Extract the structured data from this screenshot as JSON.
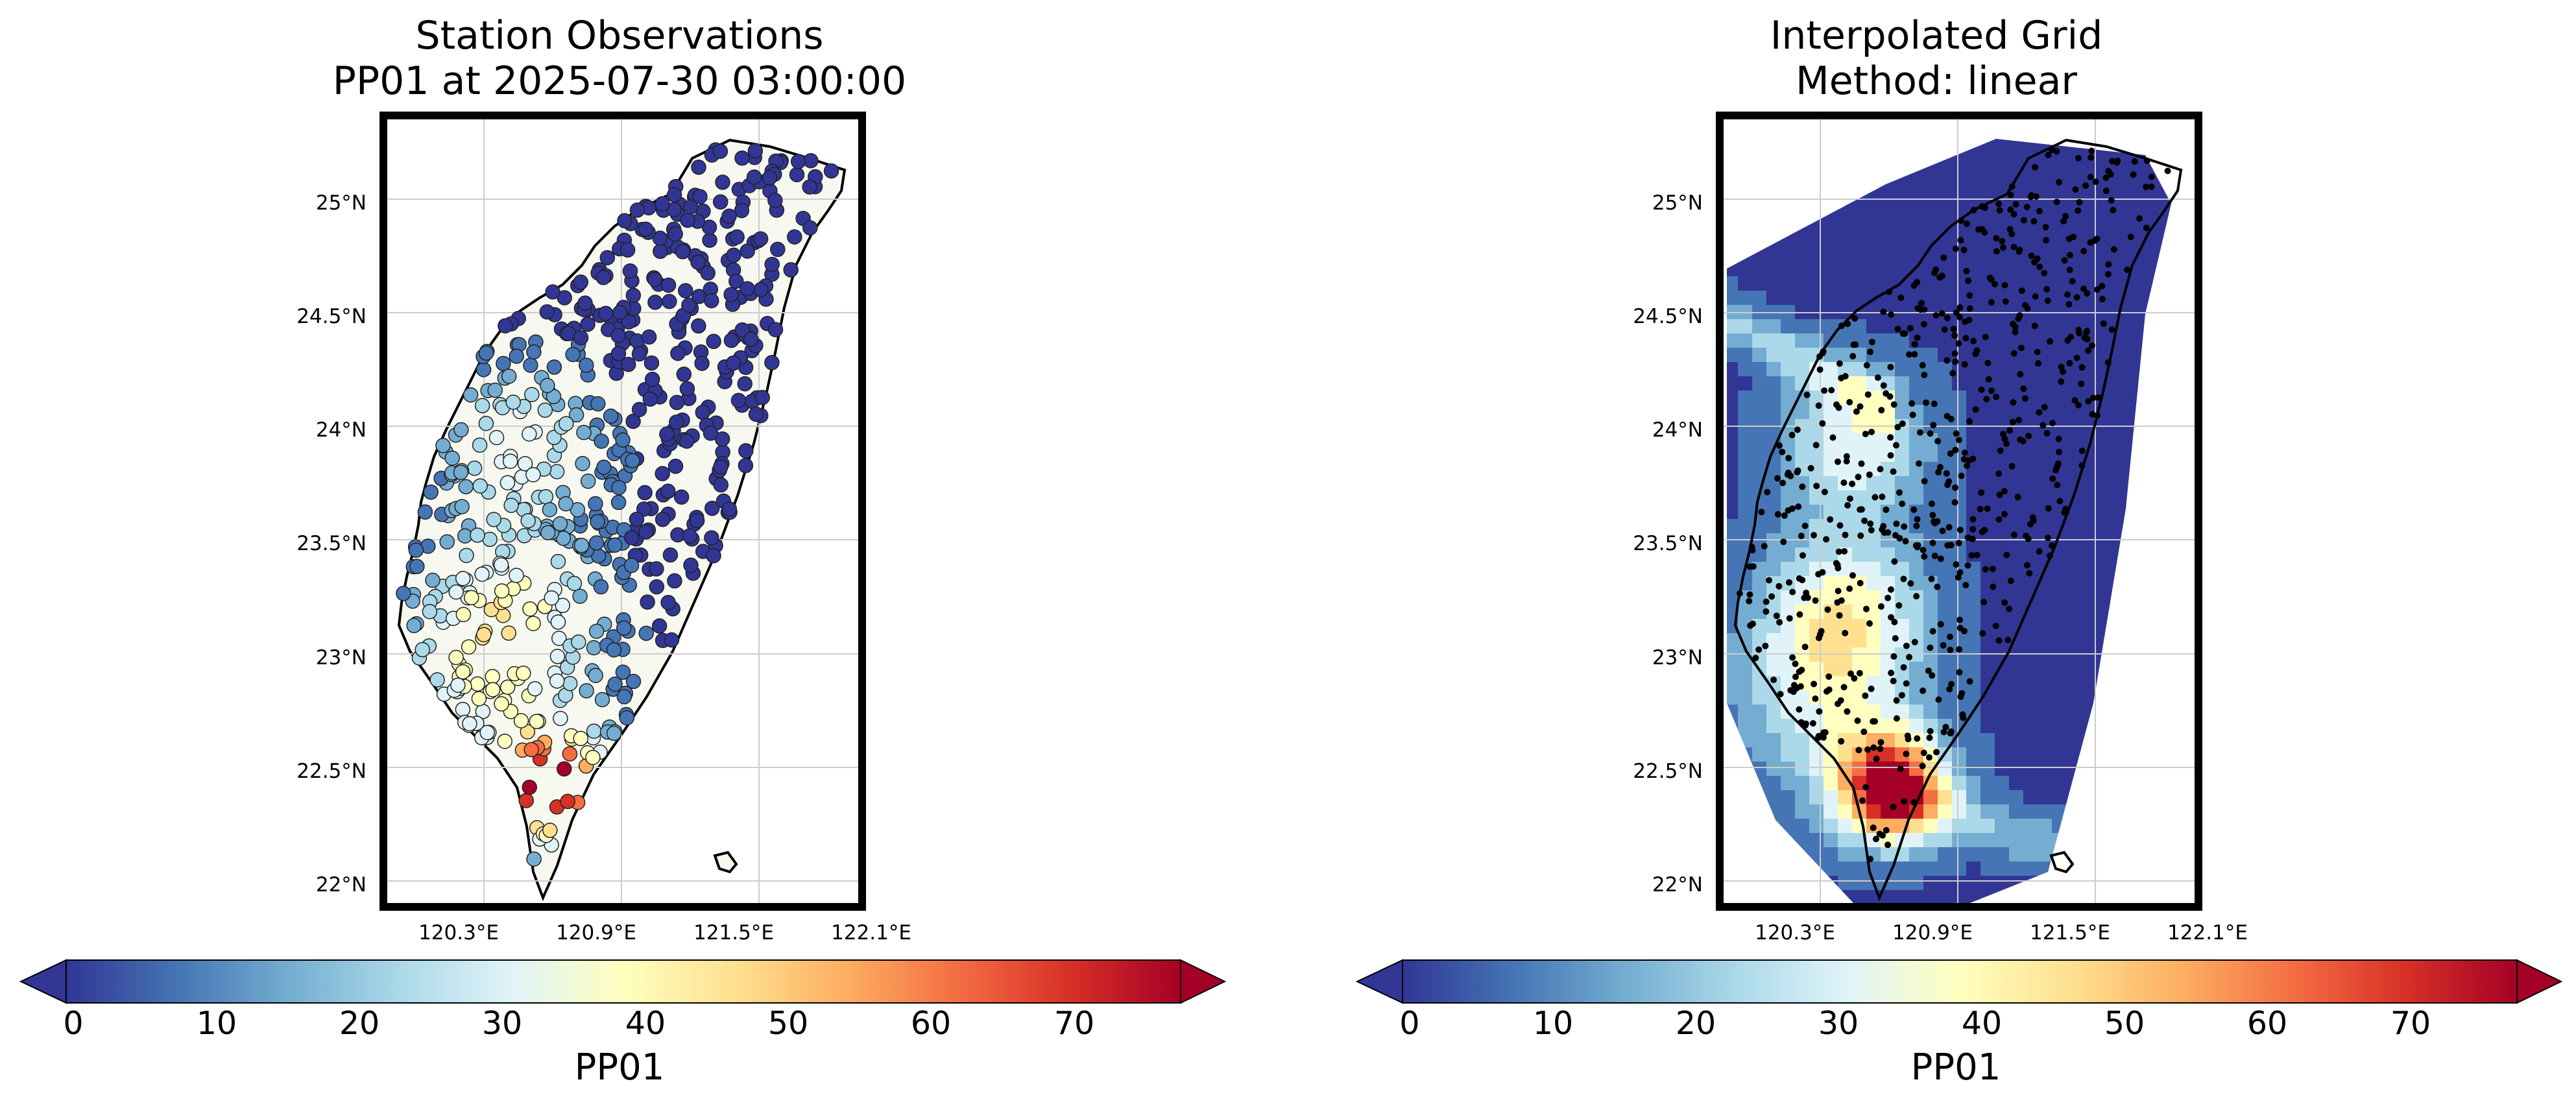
{
  "panels": [
    {
      "title_line1": "Station Observations",
      "title_line2": "PP01 at 2025-07-30 03:00:00",
      "colorbar_label": "PP01"
    },
    {
      "title_line1": "Interpolated Grid",
      "title_line2": "Method: linear",
      "colorbar_label": "PP01"
    }
  ],
  "lat_ticks": [
    "25°N",
    "24.5°N",
    "24°N",
    "23.5°N",
    "23°N",
    "22.5°N",
    "22°N"
  ],
  "lon_ticks": [
    "120.3°E",
    "120.9°E",
    "121.5°E",
    "122.1°E"
  ],
  "colorbar_ticks": [
    "0",
    "10",
    "20",
    "30",
    "40",
    "50",
    "60",
    "70"
  ],
  "colors": {
    "colormap": [
      "#313695",
      "#4575b4",
      "#74add1",
      "#abd9e9",
      "#e0f3f8",
      "#ffffbf",
      "#fee090",
      "#fdae61",
      "#f46d43",
      "#d73027",
      "#a50026"
    ],
    "land": "#f7f9f0",
    "ocean": "#ffffff",
    "grid_background": "#313695"
  }
}
